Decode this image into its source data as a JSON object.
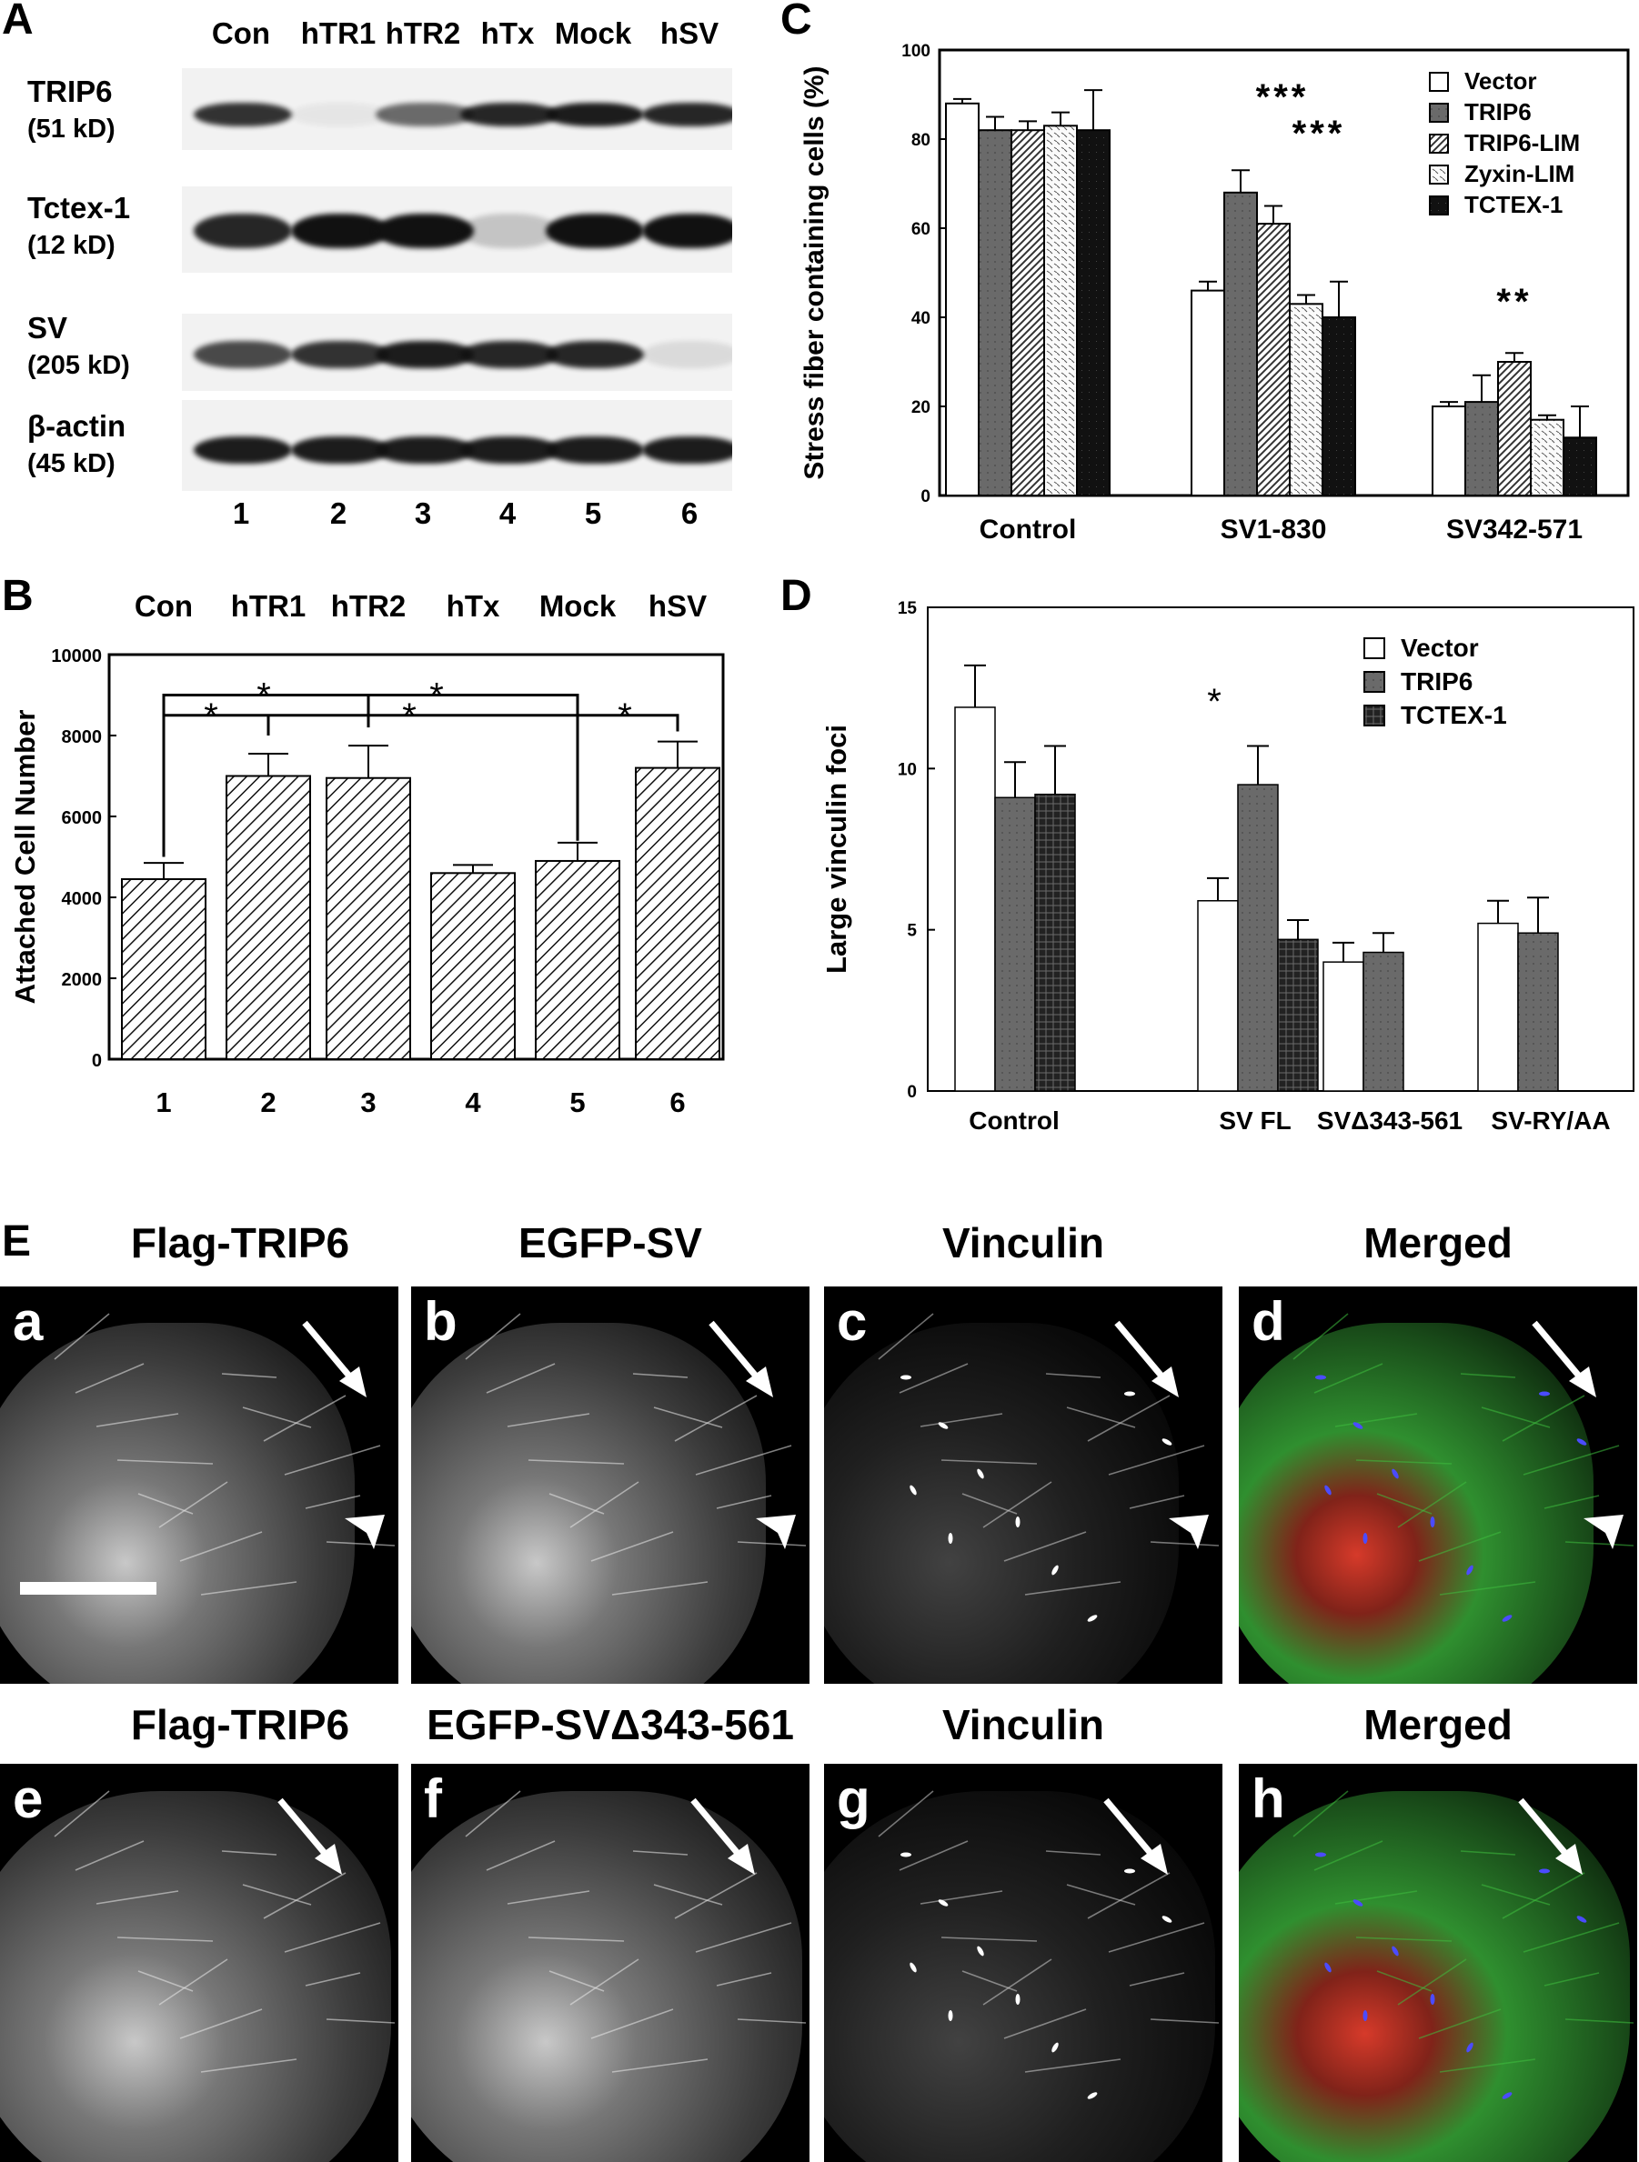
{
  "panelA": {
    "letter": "A",
    "lanes": [
      "Con",
      "hTR1",
      "hTR2",
      "hTx",
      "Mock",
      "hSV"
    ],
    "lane_numbers": [
      "1",
      "2",
      "3",
      "4",
      "5",
      "6"
    ],
    "blots": [
      {
        "name": "TRIP6",
        "size": "(51 kD)",
        "intensity": [
          0.85,
          0.05,
          0.6,
          0.9,
          0.95,
          0.9
        ]
      },
      {
        "name": "Tctex-1",
        "size": "(12 kD)",
        "intensity": [
          0.9,
          1.0,
          1.0,
          0.2,
          1.0,
          1.0
        ]
      },
      {
        "name": "SV",
        "size": "(205 kD)",
        "intensity": [
          0.75,
          0.85,
          0.95,
          0.9,
          0.9,
          0.1
        ]
      },
      {
        "name": "β-actin",
        "size": "(45 kD)",
        "intensity": [
          0.95,
          0.95,
          0.95,
          0.95,
          0.95,
          0.95
        ]
      }
    ]
  },
  "panelB": {
    "letter": "B",
    "top_labels": [
      "Con",
      "hTR1",
      "hTR2",
      "hTx",
      "Mock",
      "hSV"
    ],
    "significance_marks": [
      "*",
      "*",
      "*",
      "*",
      "*"
    ],
    "chart_data": {
      "type": "bar",
      "categories": [
        "1",
        "2",
        "3",
        "4",
        "5",
        "6"
      ],
      "values": [
        4450,
        7000,
        6950,
        4600,
        4900,
        7200
      ],
      "errors": [
        400,
        550,
        800,
        200,
        450,
        650
      ],
      "ylabel": "Attached Cell Number",
      "ylim": [
        0,
        10000
      ],
      "yticks": [
        "0",
        "2000",
        "4000",
        "6000",
        "8000",
        "10000"
      ]
    }
  },
  "panelC": {
    "letter": "C",
    "annotations": [
      "***",
      "***",
      "**"
    ],
    "chart_data": {
      "type": "bar",
      "categories": [
        "Control",
        "SV1-830",
        "SV342-571"
      ],
      "series": [
        {
          "name": "Vector",
          "values": [
            88,
            46,
            20
          ],
          "errors": [
            1,
            2,
            1
          ]
        },
        {
          "name": "TRIP6",
          "values": [
            82,
            68,
            21
          ],
          "errors": [
            3,
            5,
            6
          ]
        },
        {
          "name": "TRIP6-LIM",
          "values": [
            82,
            61,
            30
          ],
          "errors": [
            2,
            4,
            2
          ]
        },
        {
          "name": "Zyxin-LIM",
          "values": [
            83,
            43,
            17
          ],
          "errors": [
            3,
            2,
            1
          ]
        },
        {
          "name": "TCTEX-1",
          "values": [
            82,
            40,
            13
          ],
          "errors": [
            9,
            8,
            7
          ]
        }
      ],
      "ylabel": "Stress fiber containing cells (%)",
      "ylim": [
        0,
        100
      ],
      "yticks": [
        "0",
        "20",
        "40",
        "60",
        "80",
        "100"
      ],
      "legend": "top-right"
    }
  },
  "panelD": {
    "letter": "D",
    "annotations": [
      "*"
    ],
    "chart_data": {
      "type": "bar",
      "categories": [
        "Control",
        "SV FL",
        "SVΔ343-561",
        "SV-RY/AA"
      ],
      "series": [
        {
          "name": "Vector",
          "values": [
            11.9,
            5.9,
            4.0,
            5.2
          ],
          "errors": [
            1.3,
            0.7,
            0.6,
            0.7
          ]
        },
        {
          "name": "TRIP6",
          "values": [
            9.1,
            9.5,
            4.3,
            4.9
          ],
          "errors": [
            1.1,
            1.2,
            0.6,
            1.1
          ]
        },
        {
          "name": "TCTEX-1",
          "values": [
            9.2,
            4.7,
            null,
            null
          ],
          "errors": [
            1.5,
            0.6,
            null,
            null
          ]
        }
      ],
      "ylabel": "Large vinculin foci",
      "ylim": [
        0,
        15
      ],
      "yticks": [
        "0",
        "5",
        "10",
        "15"
      ],
      "legend": "top-right"
    }
  },
  "panelE": {
    "letter": "E",
    "titles_row1": [
      "Flag-TRIP6",
      "EGFP-SV",
      "Vinculin",
      "Merged"
    ],
    "titles_row2": [
      "Flag-TRIP6",
      "EGFP-SVΔ343-561",
      "Vinculin",
      "Merged"
    ],
    "image_letters_row1": [
      "a",
      "b",
      "c",
      "d"
    ],
    "image_letters_row2": [
      "e",
      "f",
      "g",
      "h"
    ]
  },
  "colors": {
    "bar_white": "#ffffff",
    "bar_dark_gray": "#666666",
    "bar_black": "#111111",
    "merged_green": "#3fbf3f",
    "merged_red": "#d63a2a",
    "merged_blue": "#4b4bff"
  }
}
